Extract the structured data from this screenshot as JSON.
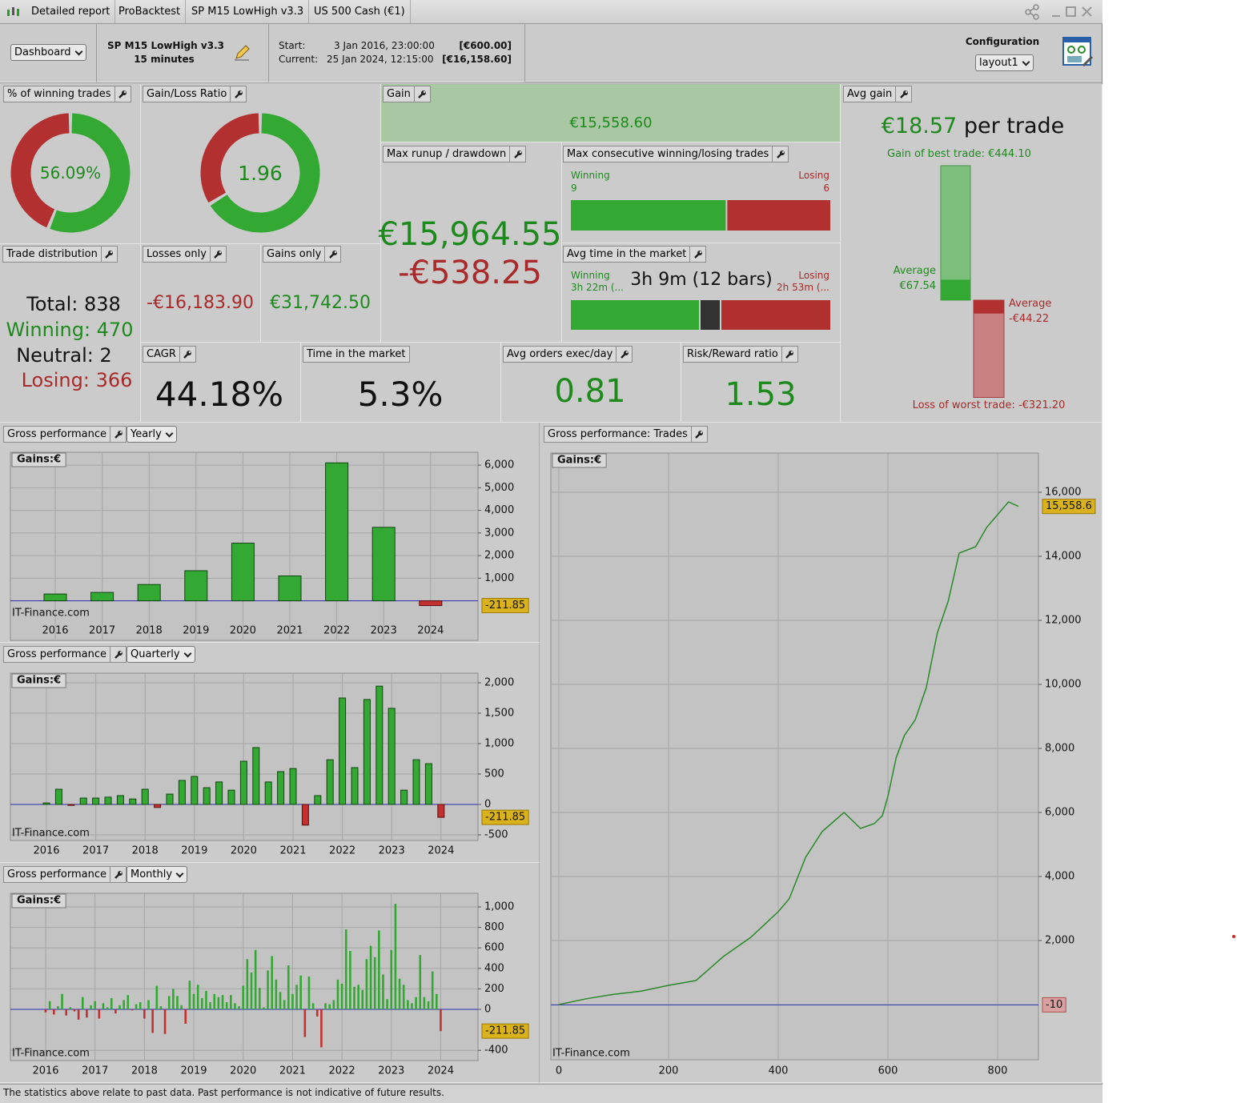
{
  "window": {
    "tabs": [
      "Detailed report",
      "ProBacktest",
      "SP M15 LowHigh v3.3",
      "US 500 Cash (€1)"
    ]
  },
  "header": {
    "view": "Dashboard",
    "strategy": "SP M15 LowHigh v3.3",
    "timeframe": "15 minutes",
    "start_label": "Start:",
    "start_date": "3 Jan 2016, 23:00:00",
    "start_value": "[€600.00]",
    "current_label": "Current:",
    "current_date": "25 Jan 2024, 12:15:00",
    "current_value": "[€16,158.60]",
    "config_label": "Configuration",
    "layout": "layout1"
  },
  "widgets": {
    "winning": {
      "title": "% of winning trades",
      "value": 56.09,
      "label": "56.09%"
    },
    "gain_loss": {
      "title": "Gain/Loss Ratio",
      "value": 1.96
    },
    "gain": {
      "title": "Gain",
      "value": "€15,558.60"
    },
    "runup": {
      "title": "Max runup / drawdown",
      "runup": "€15,964.55",
      "drawdown": "-€538.25"
    },
    "consecutive": {
      "title": "Max consecutive winning/losing trades",
      "winning_label": "Winning",
      "winning": 9,
      "losing_label": "Losing",
      "losing": 6
    },
    "avg_time": {
      "title": "Avg time in the market",
      "overall": "3h 9m (12 bars)",
      "winning_label": "Winning",
      "winning": "3h 22m (...",
      "losing_label": "Losing",
      "losing": "2h 53m (..."
    },
    "avg_gain": {
      "title": "Avg gain",
      "value": "€18.57",
      "unit": "per trade",
      "best": {
        "value": 444.1,
        "label": "Gain of best trade: €444.10"
      },
      "average_win_label": "Average",
      "average_win": {
        "value": 67.54,
        "label": "€67.54"
      },
      "average_loss_label": "Average",
      "average_loss": {
        "value": -44.22,
        "label": "-€44.22"
      },
      "worst": {
        "value": -321.2,
        "label": "Loss of worst trade: -€321.20"
      }
    },
    "distribution": {
      "title": "Trade distribution",
      "total": "Total: 838",
      "winning": "Winning: 470",
      "neutral": "Neutral: 2",
      "losing": "Losing: 366"
    },
    "losses_only": {
      "title": "Losses only",
      "value": "-€16,183.90"
    },
    "gains_only": {
      "title": "Gains only",
      "value": "€31,742.50"
    },
    "cagr": {
      "title": "CAGR",
      "value": "44.18%"
    },
    "time_in_market": {
      "title": "Time in the market",
      "value": "5.3%"
    },
    "avg_orders": {
      "title": "Avg orders exec/day",
      "value": 0.81
    },
    "risk_reward": {
      "title": "Risk/Reward ratio",
      "value": 1.53
    }
  },
  "chart_data": [
    {
      "type": "bar",
      "title": "Gross performance",
      "period": "Yearly",
      "axis_label": "Gains:€",
      "watermark": "IT-Finance.com",
      "categories": [
        "2016",
        "2017",
        "2018",
        "2019",
        "2020",
        "2021",
        "2022",
        "2023",
        "2024"
      ],
      "values": [
        300,
        370,
        720,
        1330,
        2550,
        1100,
        6100,
        3250,
        -211.85
      ],
      "ylim": [
        -1750,
        6570
      ],
      "yticks": [
        {
          "value": 1000,
          "label": "1,000"
        },
        {
          "value": 2000,
          "label": "2,000"
        },
        {
          "value": 3000,
          "label": "3,000"
        },
        {
          "value": 4000,
          "label": "4,000"
        },
        {
          "value": 5000,
          "label": "5,000"
        },
        {
          "value": 6000,
          "label": "6,000"
        }
      ],
      "color": "#33a833",
      "negative_color": "#c23030"
    },
    {
      "type": "bar",
      "title": "Gross performance",
      "period": "Quarterly",
      "axis_label": "Gains:€",
      "watermark": "IT-Finance.com",
      "categories": [
        "2016",
        null,
        null,
        null,
        "2017",
        null,
        null,
        null,
        "2018",
        null,
        null,
        null,
        "2019",
        null,
        null,
        null,
        "2020",
        null,
        null,
        null,
        "2021",
        null,
        null,
        null,
        "2022",
        null,
        null,
        null,
        "2023",
        null,
        null,
        null,
        "2024"
      ],
      "values": [
        25,
        250,
        -15,
        105,
        105,
        120,
        145,
        90,
        250,
        -50,
        170,
        395,
        460,
        275,
        370,
        235,
        710,
        935,
        370,
        540,
        590,
        -340,
        145,
        735,
        1750,
        605,
        1725,
        1945,
        1580,
        235,
        735,
        670,
        -211.85
      ],
      "ylim": [
        -592,
        2158
      ],
      "yticks": [
        -500,
        0,
        500,
        {
          "value": 1000,
          "label": "1,000"
        },
        {
          "value": 1500,
          "label": "1,500"
        },
        {
          "value": 2000,
          "label": "2,000"
        }
      ],
      "color": "#33a833",
      "negative_color": "#c23030"
    },
    {
      "type": "bar",
      "title": "Gross performance",
      "period": "Monthly",
      "axis_label": "Gains:€",
      "watermark": "IT-Finance.com",
      "categories": [
        "2016",
        null,
        null,
        null,
        null,
        null,
        null,
        null,
        null,
        null,
        null,
        null,
        "2017",
        null,
        null,
        null,
        null,
        null,
        null,
        null,
        null,
        null,
        null,
        null,
        "2018",
        null,
        null,
        null,
        null,
        null,
        null,
        null,
        null,
        null,
        null,
        null,
        "2019",
        null,
        null,
        null,
        null,
        null,
        null,
        null,
        null,
        null,
        null,
        null,
        "2020",
        null,
        null,
        null,
        null,
        null,
        null,
        null,
        null,
        null,
        null,
        null,
        "2021",
        null,
        null,
        null,
        null,
        null,
        null,
        null,
        null,
        null,
        null,
        null,
        "2022",
        null,
        null,
        null,
        null,
        null,
        null,
        null,
        null,
        null,
        null,
        null,
        "2023",
        null,
        null,
        null,
        null,
        null,
        null,
        null,
        null,
        null,
        null,
        null,
        "2024"
      ],
      "values": [
        -30,
        80,
        -50,
        30,
        150,
        -60,
        20,
        -20,
        -100,
        120,
        -80,
        40,
        80,
        -90,
        60,
        20,
        110,
        -40,
        40,
        90,
        140,
        -10,
        50,
        70,
        -90,
        90,
        -230,
        230,
        30,
        -240,
        130,
        200,
        130,
        40,
        -140,
        280,
        150,
        240,
        110,
        180,
        70,
        150,
        120,
        140,
        70,
        140,
        60,
        30,
        230,
        490,
        360,
        580,
        210,
        20,
        380,
        520,
        290,
        170,
        90,
        430,
        150,
        240,
        330,
        -270,
        320,
        60,
        -70,
        -370,
        60,
        50,
        90,
        290,
        250,
        780,
        570,
        220,
        240,
        190,
        490,
        620,
        510,
        770,
        340,
        100,
        580,
        1030,
        300,
        240,
        90,
        60,
        120,
        530,
        120,
        80,
        370,
        150,
        -211.85
      ],
      "ylim": [
        -500,
        1133
      ],
      "yticks": [
        -400,
        0,
        200,
        400,
        600,
        800,
        {
          "value": 1000,
          "label": "1,000"
        }
      ],
      "color": "#33a833",
      "negative_color": "#c23030"
    },
    {
      "type": "line",
      "title": "Gross performance: Trades",
      "axis_label": "Gains:€",
      "watermark": "IT-Finance.com",
      "x": [
        0,
        50,
        100,
        150,
        200,
        250,
        300,
        350,
        400,
        420,
        450,
        480,
        500,
        520,
        550,
        575,
        590,
        600,
        615,
        630,
        650,
        670,
        690,
        710,
        730,
        760,
        780,
        800,
        820,
        838
      ],
      "values": [
        0,
        180,
        320,
        420,
        600,
        750,
        1500,
        2100,
        2900,
        3300,
        4600,
        5400,
        5700,
        6000,
        5500,
        5650,
        5900,
        6500,
        7700,
        8400,
        8900,
        9900,
        11600,
        12600,
        14100,
        14300,
        14900,
        15300,
        15700,
        15558.6
      ],
      "last_value_label": "15,558.6",
      "reference_line": -10,
      "xlim": [
        -14.6,
        874.5
      ],
      "xticks": [
        0,
        200,
        400,
        600,
        800
      ],
      "ylim": [
        -1725,
        17225
      ],
      "yticks": [
        {
          "value": 2000,
          "label": "2,000"
        },
        {
          "value": 4000,
          "label": "4,000"
        },
        {
          "value": 6000,
          "label": "6,000"
        },
        {
          "value": 8000,
          "label": "8,000"
        },
        {
          "value": 10000,
          "label": "10,000"
        },
        {
          "value": 12000,
          "label": "12,000"
        },
        {
          "value": 14000,
          "label": "14,000"
        },
        {
          "value": 16000,
          "label": "16,000"
        }
      ],
      "color": "#2a8a2a"
    }
  ],
  "footer": "The statistics above relate to past data. Past performance is not indicative of future results."
}
